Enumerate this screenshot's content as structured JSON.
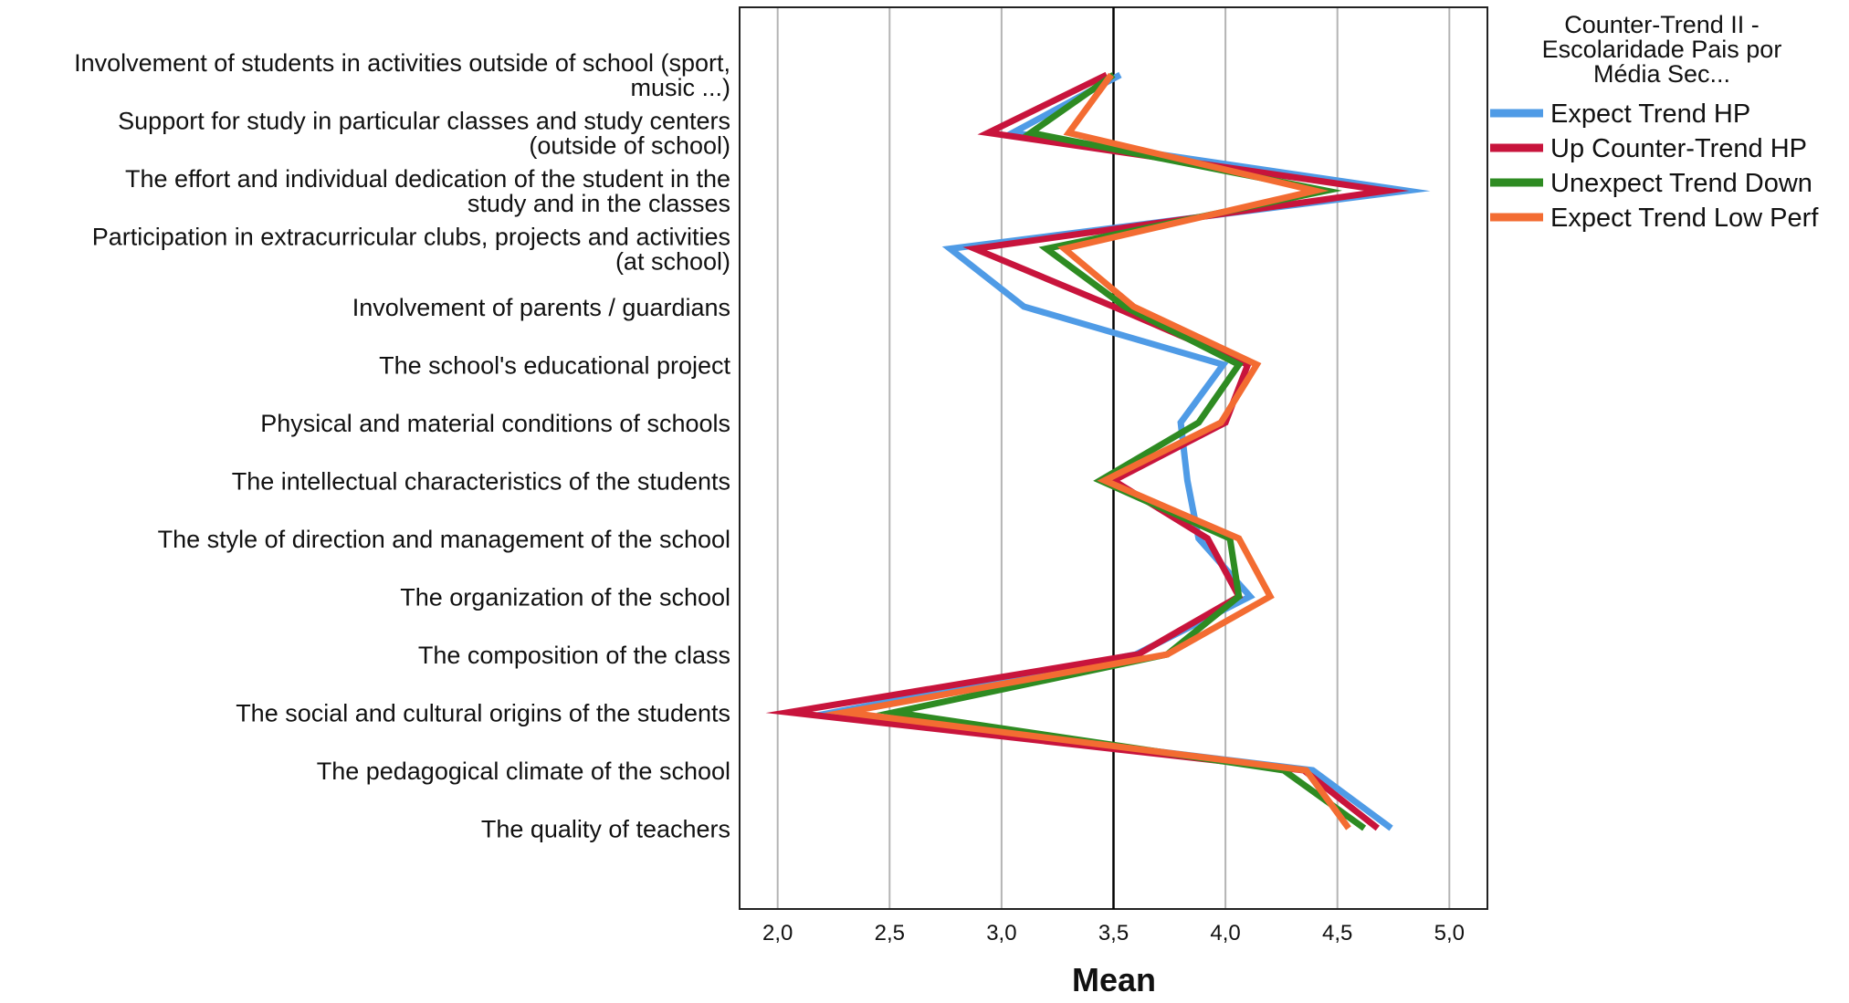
{
  "chart_data": {
    "type": "line",
    "orientation": "horizontal",
    "xlabel": "Mean",
    "xlim": [
      1.83,
      5.17
    ],
    "xticks": [
      "2,0",
      "2,5",
      "3,0",
      "3,5",
      "4,0",
      "4,5",
      "5,0"
    ],
    "xtick_values": [
      2.0,
      2.5,
      3.0,
      3.5,
      4.0,
      4.5,
      5.0
    ],
    "reference_line": 3.5,
    "grid": true,
    "legend_position": "top-right",
    "legend_title_lines": [
      "Counter-Trend II -",
      "Escolaridade Pais por",
      "Média Sec..."
    ],
    "categories": [
      [
        "Involvement of students in activities outside of school (sport,",
        "music ...)"
      ],
      [
        "Support for study in particular classes and study centers",
        "(outside of school)"
      ],
      [
        "The effort and individual dedication of the student in the",
        "study and in the classes"
      ],
      [
        "Participation in extracurricular clubs, projects and activities",
        "(at school)"
      ],
      [
        "Involvement of parents / guardians"
      ],
      [
        "The school's educational project"
      ],
      [
        "Physical and material conditions of schools"
      ],
      [
        "The intellectual characteristics of the students"
      ],
      [
        "The style of direction and management of the school"
      ],
      [
        "The organization of the school"
      ],
      [
        "The composition of the class"
      ],
      [
        "The social and cultural origins of the students"
      ],
      [
        "The pedagogical climate of the school"
      ],
      [
        "The quality of teachers"
      ]
    ],
    "series": [
      {
        "name": "Expect Trend HP",
        "color": "#4f9be6",
        "values": [
          3.53,
          3.05,
          4.81,
          2.77,
          3.1,
          3.99,
          3.8,
          3.83,
          3.88,
          4.11,
          3.6,
          2.25,
          4.39,
          4.74
        ]
      },
      {
        "name": "Up Counter-Trend HP",
        "color": "#c8143c",
        "values": [
          3.47,
          2.94,
          4.72,
          2.88,
          3.5,
          4.1,
          4.0,
          3.5,
          3.92,
          4.06,
          3.61,
          2.05,
          4.35,
          4.68
        ]
      },
      {
        "name": "Unexpect Trend Down",
        "color": "#2e8b22",
        "values": [
          3.5,
          3.13,
          4.45,
          3.2,
          3.55,
          4.06,
          3.88,
          3.44,
          4.02,
          4.06,
          3.74,
          2.52,
          4.26,
          4.62
        ]
      },
      {
        "name": "Expect Trend Low Perf",
        "color": "#f36c32",
        "values": [
          3.49,
          3.3,
          4.4,
          3.28,
          3.59,
          4.14,
          3.98,
          3.46,
          4.06,
          4.2,
          3.74,
          2.3,
          4.36,
          4.55
        ]
      }
    ]
  }
}
